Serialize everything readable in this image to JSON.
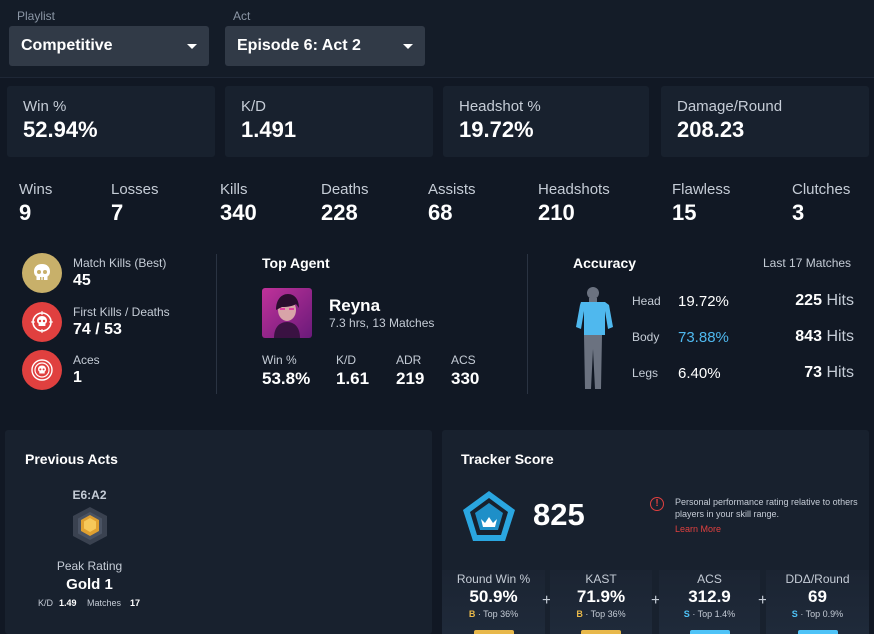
{
  "filters": {
    "playlist_label": "Playlist",
    "playlist_value": "Competitive",
    "act_label": "Act",
    "act_value": "Episode 6: Act 2"
  },
  "stat_cards": [
    {
      "label": "Win %",
      "value": "52.94%"
    },
    {
      "label": "K/D",
      "value": "1.491"
    },
    {
      "label": "Headshot %",
      "value": "19.72%"
    },
    {
      "label": "Damage/Round",
      "value": "208.23"
    }
  ],
  "mini_stats": [
    {
      "label": "Wins",
      "value": "9"
    },
    {
      "label": "Losses",
      "value": "7"
    },
    {
      "label": "Kills",
      "value": "340"
    },
    {
      "label": "Deaths",
      "value": "228"
    },
    {
      "label": "Assists",
      "value": "68"
    },
    {
      "label": "Headshots",
      "value": "210"
    },
    {
      "label": "Flawless",
      "value": "15"
    },
    {
      "label": "Clutches",
      "value": "3"
    }
  ],
  "badges": [
    {
      "label": "Match Kills (Best)",
      "value": "45",
      "color": "#c8b06a",
      "icon": "skull-icon"
    },
    {
      "label": "First Kills / Deaths",
      "value": "74 / 53",
      "color": "#e0403f",
      "icon": "crosshair-skull-icon"
    },
    {
      "label": "Aces",
      "value": "1",
      "color": "#e0403f",
      "icon": "target-skull-icon"
    }
  ],
  "top_agent": {
    "title": "Top Agent",
    "name": "Reyna",
    "meta": "7.3 hrs, 13 Matches",
    "stats": [
      {
        "label": "Win %",
        "value": "53.8%"
      },
      {
        "label": "K/D",
        "value": "1.61"
      },
      {
        "label": "ADR",
        "value": "219"
      },
      {
        "label": "ACS",
        "value": "330"
      }
    ]
  },
  "accuracy": {
    "title": "Accuracy",
    "range": "Last 17 Matches",
    "rows": [
      {
        "part": "Head",
        "pct": "19.72%",
        "hits": "225",
        "hits_label": "Hits",
        "highlight": false
      },
      {
        "part": "Body",
        "pct": "73.88%",
        "hits": "843",
        "hits_label": "Hits",
        "highlight": true
      },
      {
        "part": "Legs",
        "pct": "6.40%",
        "hits": "73",
        "hits_label": "Hits",
        "highlight": false
      }
    ],
    "highlight_color": "#4fb8ee"
  },
  "previous_acts": {
    "title": "Previous Acts",
    "act": "E6:A2",
    "peak_label": "Peak Rating",
    "peak_value": "Gold 1",
    "kd_label": "K/D",
    "kd_value": "1.49",
    "matches_label": "Matches",
    "matches_value": "17"
  },
  "tracker_score": {
    "title": "Tracker Score",
    "score": "825",
    "info_text": "Personal performance rating relative to others players in your skill range.",
    "learn_more": "Learn More",
    "cells": [
      {
        "label": "Round Win %",
        "value": "50.9%",
        "grade": "B",
        "top": "· Top 36%",
        "color": "#e8b84a"
      },
      {
        "label": "KAST",
        "value": "71.9%",
        "grade": "B",
        "top": "· Top 36%",
        "color": "#e8b84a"
      },
      {
        "label": "ACS",
        "value": "312.9",
        "grade": "S",
        "top": "· Top 1.4%",
        "color": "#4fc3f7"
      },
      {
        "label": "DDΔ/Round",
        "value": "69",
        "grade": "S",
        "top": "· Top 0.9%",
        "color": "#4fc3f7"
      }
    ],
    "plus": "+"
  }
}
